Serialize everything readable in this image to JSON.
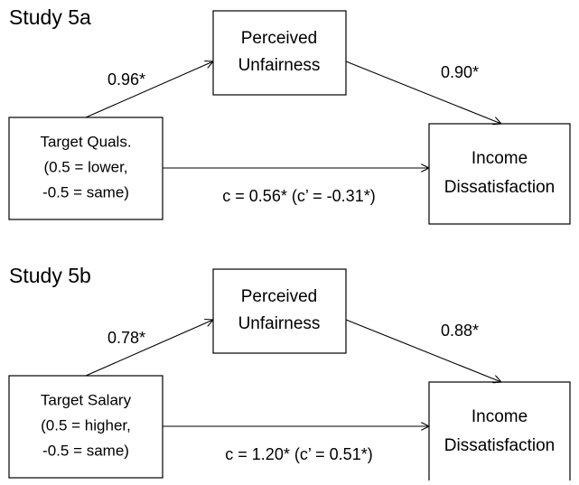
{
  "studies": [
    {
      "title": "Study 5a",
      "mediator": [
        "Perceived",
        "Unfairness"
      ],
      "predictor": [
        "Target Quals.",
        "(0.5 = lower,",
        "-0.5 = same)"
      ],
      "outcome": [
        "Income",
        "Dissatisfaction"
      ],
      "path_a": "0.96*",
      "path_b": "0.90*",
      "path_c": "c = 0.56* (c’ = -0.31*)"
    },
    {
      "title": "Study 5b",
      "mediator": [
        "Perceived",
        "Unfairness"
      ],
      "predictor": [
        "Target Salary",
        "(0.5 = higher,",
        "-0.5 = same)"
      ],
      "outcome": [
        "Income",
        "Dissatisfaction"
      ],
      "path_a": "0.78*",
      "path_b": "0.88*",
      "path_c": "c = 1.20* (c’ = 0.51*)"
    }
  ]
}
